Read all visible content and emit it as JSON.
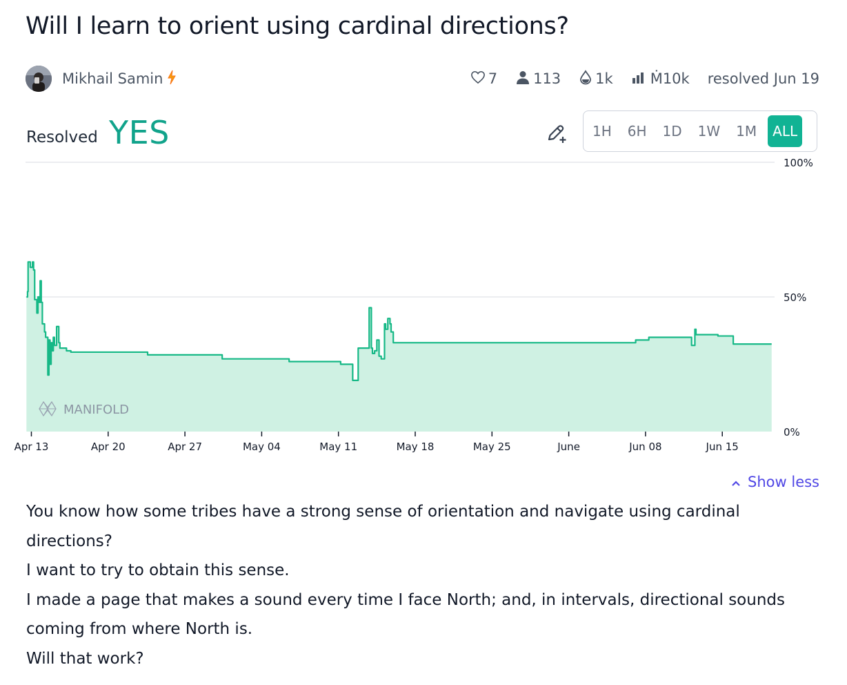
{
  "question": {
    "title": "Will I learn to orient using cardinal directions?"
  },
  "author": {
    "name": "Mikhail Samin"
  },
  "stats": {
    "likes": "7",
    "traders": "113",
    "liquidity": "1k",
    "volume": "Ṁ10k",
    "resolved": "resolved Jun 19"
  },
  "resolution": {
    "label": "Resolved",
    "value": "YES"
  },
  "time_ranges": [
    "1H",
    "6H",
    "1D",
    "1W",
    "1M",
    "ALL"
  ],
  "active_range": "ALL",
  "chart_data": {
    "type": "area",
    "xlabel": "",
    "ylabel": "",
    "y_ticks": [
      "100%",
      "50%",
      "0%"
    ],
    "ylim": [
      0,
      100
    ],
    "x_ticks": [
      {
        "label": "Apr 13",
        "day": 0
      },
      {
        "label": "Apr 20",
        "day": 7
      },
      {
        "label": "Apr 27",
        "day": 14
      },
      {
        "label": "May 04",
        "day": 21
      },
      {
        "label": "May 11",
        "day": 28
      },
      {
        "label": "May 18",
        "day": 35
      },
      {
        "label": "May 25",
        "day": 42
      },
      {
        "label": "June",
        "day": 49
      },
      {
        "label": "Jun 08",
        "day": 56
      },
      {
        "label": "Jun 15",
        "day": 63
      }
    ],
    "xlim": [
      -0.45,
      67.5
    ],
    "watermark": "MANIFOLD",
    "points": [
      [
        -0.45,
        50
      ],
      [
        -0.35,
        52
      ],
      [
        -0.3,
        63
      ],
      [
        -0.1,
        61
      ],
      [
        0.1,
        63
      ],
      [
        0.2,
        60
      ],
      [
        0.3,
        49
      ],
      [
        0.5,
        44
      ],
      [
        0.6,
        50
      ],
      [
        0.7,
        48
      ],
      [
        0.8,
        56
      ],
      [
        0.9,
        48
      ],
      [
        1.0,
        40
      ],
      [
        1.2,
        37
      ],
      [
        1.3,
        35
      ],
      [
        1.5,
        21
      ],
      [
        1.6,
        34
      ],
      [
        1.7,
        25
      ],
      [
        1.8,
        33
      ],
      [
        1.9,
        30
      ],
      [
        2.0,
        35
      ],
      [
        2.1,
        32
      ],
      [
        2.3,
        39
      ],
      [
        2.5,
        33
      ],
      [
        2.6,
        31
      ],
      [
        2.8,
        31
      ],
      [
        3.2,
        30
      ],
      [
        3.6,
        29.5
      ],
      [
        10.5,
        29.5
      ],
      [
        10.6,
        28.5
      ],
      [
        17.3,
        28.5
      ],
      [
        17.4,
        27
      ],
      [
        23.4,
        27
      ],
      [
        23.5,
        26
      ],
      [
        28.1,
        26
      ],
      [
        28.2,
        25
      ],
      [
        29.2,
        25
      ],
      [
        29.3,
        19
      ],
      [
        29.7,
        19
      ],
      [
        29.8,
        31
      ],
      [
        30.7,
        31
      ],
      [
        30.8,
        46
      ],
      [
        31.0,
        31
      ],
      [
        31.1,
        29
      ],
      [
        31.3,
        30
      ],
      [
        31.5,
        34
      ],
      [
        31.7,
        28
      ],
      [
        31.9,
        27
      ],
      [
        32.1,
        27
      ],
      [
        32.2,
        40
      ],
      [
        32.3,
        38
      ],
      [
        32.5,
        42
      ],
      [
        32.7,
        40
      ],
      [
        32.8,
        37
      ],
      [
        33.0,
        33
      ],
      [
        55.0,
        33
      ],
      [
        55.1,
        34
      ],
      [
        56.2,
        34
      ],
      [
        56.3,
        35
      ],
      [
        60.1,
        35
      ],
      [
        60.2,
        32
      ],
      [
        60.4,
        32
      ],
      [
        60.5,
        38
      ],
      [
        60.6,
        36
      ],
      [
        62.5,
        36
      ],
      [
        62.6,
        35.5
      ],
      [
        63.9,
        35.5
      ],
      [
        64.0,
        32.5
      ],
      [
        67.5,
        32.5
      ]
    ]
  },
  "show_less": "Show less",
  "description": [
    "You know how some tribes have a strong sense of orientation and navigate using cardinal directions?",
    "I want to try to obtain this sense.",
    "I made a page that makes a sound every time I face North; and, in intervals, directional sounds coming from where North is.",
    "Will that work?"
  ],
  "colors": {
    "accent": "#11b394",
    "yes": "#11a38b",
    "line": "#16b886",
    "area": "#cff1e3",
    "link": "#4f46e5"
  },
  "icons": [
    "avatar",
    "bolt-icon",
    "heart-icon",
    "user-icon",
    "droplet-icon",
    "bar-chart-icon",
    "edit-pencil-plus-icon",
    "chevron-up-icon",
    "manifold-logo-icon"
  ]
}
